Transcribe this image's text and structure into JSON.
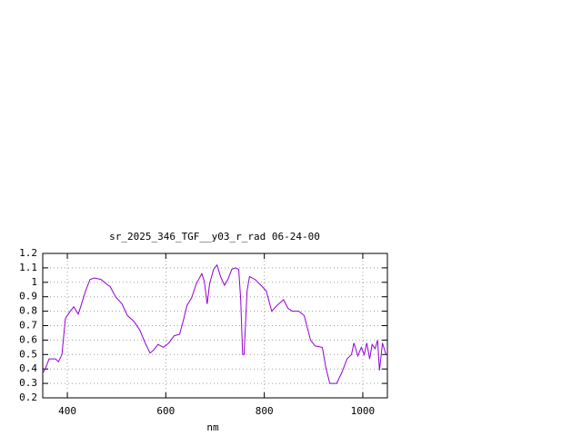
{
  "chart_data": {
    "type": "line",
    "title": "sr_2025_346_TGF__y03_r_rad 06-24-00",
    "x_label": "nm",
    "x": [
      350,
      355,
      363,
      376,
      382,
      389,
      396,
      406,
      413,
      422,
      428,
      437,
      446,
      455,
      468,
      479,
      487,
      498,
      511,
      522,
      535,
      547,
      558,
      568,
      575,
      584,
      595,
      606,
      617,
      628,
      636,
      643,
      652,
      662,
      673,
      678,
      684,
      689,
      697,
      704,
      711,
      719,
      726,
      734,
      741,
      748,
      752,
      756,
      759,
      765,
      770,
      781,
      793,
      804,
      815,
      826,
      839,
      848,
      857,
      870,
      881,
      894,
      903,
      918,
      925,
      933,
      947,
      958,
      968,
      977,
      982,
      990,
      997,
      1003,
      1008,
      1014,
      1019,
      1025,
      1030,
      1034,
      1040,
      1047
    ],
    "series": [
      {
        "name": "sr_2025_346_TGF__y03_r_rad 06-24-00",
        "color": "#9400d3",
        "values": [
          0.37,
          0.4,
          0.47,
          0.47,
          0.45,
          0.5,
          0.75,
          0.8,
          0.83,
          0.78,
          0.84,
          0.94,
          1.02,
          1.03,
          1.02,
          0.99,
          0.97,
          0.9,
          0.85,
          0.77,
          0.73,
          0.67,
          0.58,
          0.51,
          0.53,
          0.57,
          0.55,
          0.58,
          0.63,
          0.64,
          0.74,
          0.84,
          0.89,
          0.99,
          1.06,
          1.01,
          0.85,
          0.99,
          1.09,
          1.12,
          1.04,
          0.98,
          1.02,
          1.09,
          1.1,
          1.09,
          0.88,
          0.5,
          0.5,
          0.94,
          1.04,
          1.02,
          0.98,
          0.94,
          0.8,
          0.84,
          0.88,
          0.82,
          0.8,
          0.8,
          0.77,
          0.6,
          0.56,
          0.55,
          0.41,
          0.3,
          0.3,
          0.38,
          0.47,
          0.5,
          0.58,
          0.49,
          0.55,
          0.5,
          0.58,
          0.47,
          0.57,
          0.54,
          0.6,
          0.39,
          0.58,
          0.5
        ]
      }
    ],
    "xlim": [
      350,
      1050
    ],
    "xticks": [
      400,
      600,
      800,
      1000
    ],
    "ylim": [
      0.2,
      1.2
    ],
    "yticks": [
      0.2,
      0.3,
      0.4,
      0.5,
      0.6,
      0.7,
      0.8,
      0.9,
      1,
      1.1,
      1.2
    ],
    "grid": true
  }
}
